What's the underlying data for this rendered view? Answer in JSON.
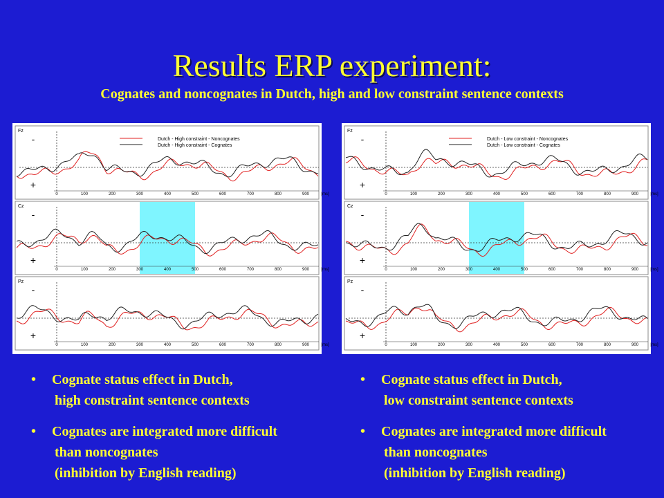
{
  "title": "Results ERP experiment:",
  "subtitle": "Cognates and noncognates in Dutch, high and low constraint sentence contexts",
  "panels": [
    {
      "legend": [
        "Dutch - High constraint - Noncognates",
        "Dutch - High constraint - Cognates"
      ],
      "channels": [
        "Fz",
        "Cz",
        "Pz"
      ],
      "polarity": [
        "-",
        "+"
      ],
      "xticks": [
        "0",
        "100",
        "200",
        "300",
        "400",
        "500",
        "600",
        "700",
        "800",
        "900"
      ],
      "xunit": "[ms]",
      "bullets": [
        [
          "Cognate status effect in Dutch,",
          "high constraint sentence contexts"
        ],
        [
          "Cognates are integrated more difficult",
          "than noncognates",
          "(inhibition by English reading)"
        ]
      ]
    },
    {
      "legend": [
        "Dutch - Low constraint - Noncognates",
        "Dutch - Low constraint - Cognates"
      ],
      "channels": [
        "Fz",
        "Cz",
        "Pz"
      ],
      "polarity": [
        "-",
        "+"
      ],
      "xticks": [
        "0",
        "100",
        "200",
        "300",
        "400",
        "500",
        "600",
        "700",
        "800",
        "900"
      ],
      "xunit": "[ms]",
      "bullets": [
        [
          "Cognate status effect in Dutch,",
          "low constraint sentence contexts"
        ],
        [
          "Cognates are integrated more difficult",
          "than noncognates",
          "(inhibition by English reading)"
        ]
      ]
    }
  ]
}
